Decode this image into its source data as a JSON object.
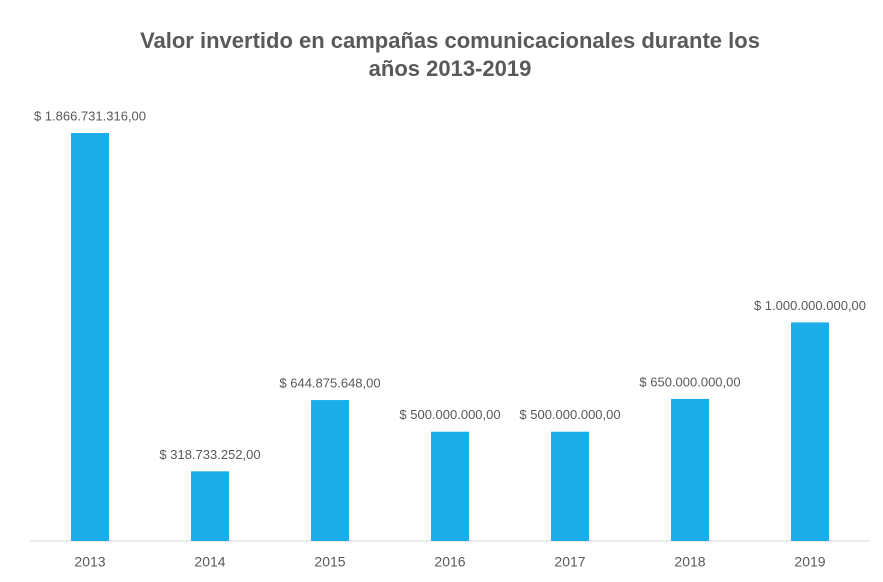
{
  "chart_data": {
    "type": "bar",
    "title": [
      "Valor invertido en campañas comunicacionales durante los",
      "años 2013-2019"
    ],
    "categories": [
      "2013",
      "2014",
      "2015",
      "2016",
      "2017",
      "2018",
      "2019"
    ],
    "values": [
      1866731316,
      318733252,
      644875648,
      500000000,
      500000000,
      650000000,
      1000000000
    ],
    "value_labels": [
      "$ 1.866.731.316,00",
      "$ 318.733.252,00",
      "$ 644.875.648,00",
      "$ 500.000.000,00",
      "$ 500.000.000,00",
      "$ 650.000.000,00",
      "$ 1.000.000.000,00"
    ],
    "color": "#1badE8"
  }
}
